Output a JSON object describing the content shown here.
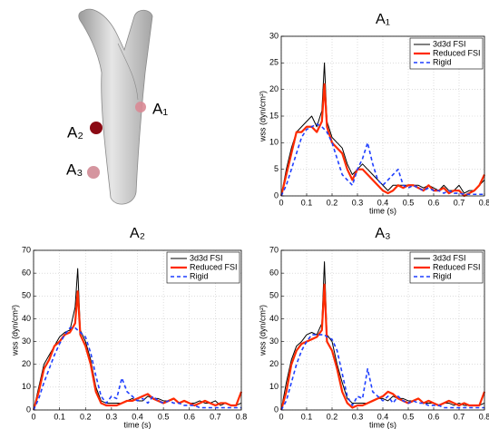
{
  "image": {
    "labels": [
      "A₁",
      "A₂",
      "A₃"
    ]
  },
  "chart_data": [
    {
      "type": "line",
      "title": "A₁",
      "xlabel": "time (s)",
      "ylabel": "wss (dyn/cm²)",
      "x": [
        0,
        0.02,
        0.04,
        0.06,
        0.08,
        0.1,
        0.12,
        0.14,
        0.16,
        0.17,
        0.18,
        0.2,
        0.22,
        0.24,
        0.26,
        0.28,
        0.3,
        0.32,
        0.34,
        0.36,
        0.38,
        0.4,
        0.42,
        0.44,
        0.46,
        0.48,
        0.5,
        0.52,
        0.54,
        0.56,
        0.58,
        0.6,
        0.62,
        0.64,
        0.66,
        0.68,
        0.7,
        0.72,
        0.74,
        0.76,
        0.78,
        0.8
      ],
      "xlim": [
        0,
        0.8
      ],
      "xticks": [
        0,
        0.1,
        0.2,
        0.3,
        0.4,
        0.5,
        0.6,
        0.7,
        0.8
      ],
      "ylim": [
        0,
        30
      ],
      "yticks": [
        0,
        5,
        10,
        15,
        20,
        25,
        30
      ],
      "grid": true,
      "legend": "upper right",
      "series": [
        {
          "name": "3d3d FSI",
          "color": "#000000",
          "style": "solid",
          "values": [
            0,
            5,
            9,
            12,
            13,
            14,
            15,
            13,
            16,
            25,
            14,
            11,
            10,
            9,
            6,
            4,
            5,
            6,
            5,
            4,
            3,
            2,
            1,
            2,
            2,
            2,
            2,
            2,
            2,
            1.5,
            2,
            1.5,
            1,
            2,
            1,
            1,
            2,
            0.5,
            1,
            1,
            2,
            3
          ]
        },
        {
          "name": "Reduced FSI",
          "color": "#ff2a00",
          "style": "thick",
          "values": [
            0,
            4,
            8,
            12,
            12,
            13,
            13,
            12,
            14,
            21,
            13,
            10,
            9,
            8,
            5,
            3,
            5,
            5,
            4,
            3,
            2,
            1,
            0.5,
            1,
            2,
            1.5,
            2,
            2,
            1.5,
            1,
            2,
            1,
            1,
            1.5,
            0.5,
            1,
            1,
            0,
            0.5,
            1,
            2,
            4
          ]
        },
        {
          "name": "Rigid",
          "color": "#1f3fff",
          "style": "dashed",
          "values": [
            0,
            2,
            5,
            8,
            11,
            12.5,
            13,
            13.5,
            13,
            12.5,
            12,
            10,
            7,
            4,
            3,
            2,
            5,
            7,
            10,
            6,
            3,
            2,
            3,
            4,
            5,
            2,
            1.5,
            2,
            1.5,
            1,
            1.5,
            1,
            1,
            0.5,
            1,
            0.5,
            0.5,
            0.3,
            0.3,
            0.3,
            0.3,
            0.3
          ]
        }
      ]
    },
    {
      "type": "line",
      "title": "A₂",
      "xlabel": "time (s)",
      "ylabel": "wss (dyn/cm²)",
      "x": [
        0,
        0.02,
        0.04,
        0.06,
        0.08,
        0.1,
        0.12,
        0.14,
        0.16,
        0.17,
        0.18,
        0.2,
        0.22,
        0.24,
        0.26,
        0.28,
        0.3,
        0.32,
        0.34,
        0.36,
        0.38,
        0.4,
        0.42,
        0.44,
        0.46,
        0.48,
        0.5,
        0.52,
        0.54,
        0.56,
        0.58,
        0.6,
        0.62,
        0.64,
        0.66,
        0.68,
        0.7,
        0.72,
        0.74,
        0.76,
        0.78,
        0.8
      ],
      "xlim": [
        0,
        0.8
      ],
      "xticks": [
        0,
        0.1,
        0.2,
        0.3,
        0.4,
        0.5,
        0.6,
        0.7,
        0.8
      ],
      "ylim": [
        0,
        70
      ],
      "yticks": [
        0,
        10,
        20,
        30,
        40,
        50,
        60,
        70
      ],
      "grid": true,
      "legend": "upper right",
      "series": [
        {
          "name": "3d3d FSI",
          "color": "#000000",
          "style": "solid",
          "values": [
            0,
            10,
            20,
            24,
            28,
            32,
            34,
            35,
            45,
            62,
            35,
            30,
            22,
            10,
            4,
            3,
            3,
            3,
            3,
            4,
            5,
            4,
            4,
            6,
            5,
            5,
            4,
            4,
            5,
            3,
            4,
            3,
            3,
            4,
            3,
            3,
            4,
            2,
            3,
            2,
            2,
            3
          ]
        },
        {
          "name": "Reduced FSI",
          "color": "#ff2a00",
          "style": "thick",
          "values": [
            0,
            8,
            18,
            22,
            28,
            30,
            33,
            34,
            38,
            52,
            33,
            28,
            20,
            8,
            3,
            2,
            2,
            2,
            3,
            4,
            4,
            5,
            6,
            7,
            5,
            4,
            3,
            4,
            5,
            3,
            4,
            3,
            2,
            3,
            4,
            3,
            2,
            3,
            3,
            2,
            2,
            8
          ]
        },
        {
          "name": "Rigid",
          "color": "#1f3fff",
          "style": "dashed",
          "values": [
            0,
            5,
            12,
            18,
            24,
            29,
            33,
            36,
            36,
            35,
            34,
            32,
            25,
            15,
            6,
            3,
            6,
            5,
            14,
            8,
            6,
            4,
            5,
            3,
            6,
            4,
            3,
            4,
            3,
            3,
            2,
            2,
            2,
            1,
            1,
            1,
            1,
            1,
            1,
            1,
            1,
            1
          ]
        }
      ]
    },
    {
      "type": "line",
      "title": "A₃",
      "xlabel": "time (s)",
      "ylabel": "wss (dyn/cm²)",
      "x": [
        0,
        0.02,
        0.04,
        0.06,
        0.08,
        0.1,
        0.12,
        0.14,
        0.16,
        0.17,
        0.18,
        0.2,
        0.22,
        0.24,
        0.26,
        0.28,
        0.3,
        0.32,
        0.34,
        0.36,
        0.38,
        0.4,
        0.42,
        0.44,
        0.46,
        0.48,
        0.5,
        0.52,
        0.54,
        0.56,
        0.58,
        0.6,
        0.62,
        0.64,
        0.66,
        0.68,
        0.7,
        0.72,
        0.74,
        0.76,
        0.78,
        0.8
      ],
      "xlim": [
        0,
        0.8
      ],
      "xticks": [
        0,
        0.1,
        0.2,
        0.3,
        0.4,
        0.5,
        0.6,
        0.7,
        0.8
      ],
      "ylim": [
        0,
        70
      ],
      "yticks": [
        0,
        10,
        20,
        30,
        40,
        50,
        60,
        70
      ],
      "grid": true,
      "legend": "upper right",
      "series": [
        {
          "name": "3d3d FSI",
          "color": "#000000",
          "style": "solid",
          "values": [
            0,
            12,
            22,
            28,
            30,
            33,
            34,
            33,
            38,
            65,
            33,
            30,
            20,
            12,
            5,
            3,
            3,
            3,
            3,
            4,
            5,
            5,
            4,
            6,
            5,
            5,
            4,
            4,
            5,
            3,
            3,
            3,
            2,
            3,
            3,
            2,
            3,
            2,
            2,
            2,
            2,
            3
          ]
        },
        {
          "name": "Reduced FSI",
          "color": "#ff2a00",
          "style": "thick",
          "values": [
            0,
            8,
            20,
            26,
            29,
            30,
            31,
            32,
            35,
            55,
            30,
            26,
            18,
            8,
            3,
            1,
            2,
            2,
            3,
            4,
            5,
            6,
            8,
            7,
            5,
            4,
            3,
            4,
            5,
            3,
            4,
            3,
            2,
            3,
            4,
            3,
            2,
            3,
            2,
            2,
            2,
            8
          ]
        },
        {
          "name": "Rigid",
          "color": "#1f3fff",
          "style": "dashed",
          "values": [
            0,
            4,
            12,
            20,
            26,
            30,
            33,
            33,
            33,
            33,
            32,
            31,
            26,
            16,
            6,
            2,
            6,
            5,
            18,
            8,
            6,
            4,
            6,
            3,
            6,
            4,
            3,
            4,
            3,
            3,
            2,
            2,
            2,
            1,
            1,
            1,
            1,
            1,
            1,
            1,
            1,
            1
          ]
        }
      ]
    }
  ]
}
